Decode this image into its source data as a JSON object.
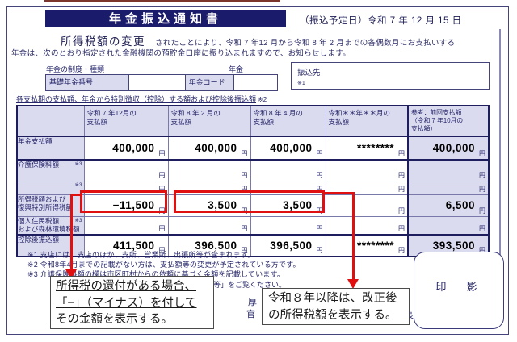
{
  "header": {
    "title": "年金振込通知書",
    "transfer_date": "（振込予定日）令和 7 年 12 月 15 日"
  },
  "intro": {
    "highlight": "所得税額の変更",
    "line1_rest": "されたことにより、令和 7 年12 月から令和 8 年 2 月までの各偶数月にお支払いする",
    "line2": "年金は、次のとおり指定された金融機関の預貯金口座に振り込まれますので、お知らせします。"
  },
  "account": {
    "system_label": "年金の制度・種類",
    "pension_label": "年金",
    "basic_number_label": "基礎年金番号",
    "code_label": "年金コード",
    "payee_label": "振込先",
    "payee_note": "※1"
  },
  "table": {
    "section_title": "各支払期の支払額、年金から特別徴収（控除）する額および控除後振込額",
    "section_note": "※2",
    "yen": "円",
    "headers": [
      "令和 7 年12月の\n支払額",
      "令和 8 年 2 月の\n支払額",
      "令和 8 年 4 月の\n支払額",
      "令和＊＊年＊＊月の\n支払額",
      "参考：前回支払額\n（令和 7 年10月の\n支払額）"
    ],
    "rows": [
      {
        "label": "年金支払額",
        "note": "",
        "values": [
          "400,000",
          "400,000",
          "400,000",
          "********",
          "400,000"
        ],
        "emphasis": true
      },
      {
        "label": "介護保険料額",
        "note": "※3",
        "values": [
          "",
          "",
          "",
          "",
          ""
        ],
        "emphasis": false
      },
      {
        "label": "",
        "note": "※3",
        "values": [
          "",
          "",
          "",
          "",
          ""
        ],
        "emphasis": false
      },
      {
        "label": "所得税額および\n復興特別所得税額",
        "note": "",
        "values": [
          "−11,500",
          "3,500",
          "3,500",
          "",
          "6,500"
        ],
        "emphasis": false
      },
      {
        "label": "個人住民税額\nおよび森林環境税額",
        "note": "※3",
        "values": [
          "",
          "",
          "",
          "",
          ""
        ],
        "emphasis": false
      },
      {
        "label": "控除後振込額",
        "note": "",
        "values": [
          "411,500",
          "396,500",
          "396,500",
          "********",
          "393,500"
        ],
        "emphasis": true
      }
    ]
  },
  "notes": [
    "※1 支店には、支店のほか、支所、営業所、出張所等が含まれます。",
    "※2 令和8年4月までの記載がない方は、支払額等の変更が予定されている方です。",
    "※3 介護保険料額の欄は市区町村からの依頼に基づく金額を記載しています。"
  ],
  "note4_fragment": "料等」をご覧ください。",
  "callouts": {
    "refund_line1": "所得税の還付がある場合、",
    "refund_line2": "「−」（マイナス）を付して",
    "refund_line3": "その金額を表示する。",
    "revision_line1": "令和８年以降は、改正後",
    "revision_line2": "の所得税額を表示する。"
  },
  "stamp_label": "印　影",
  "fragments": {
    "f1": "厚",
    "f2": "官",
    "f3": "長"
  },
  "colors": {
    "navy": "#1b1b6b",
    "lavender": "#dbdbf0",
    "red": "#e01010"
  }
}
